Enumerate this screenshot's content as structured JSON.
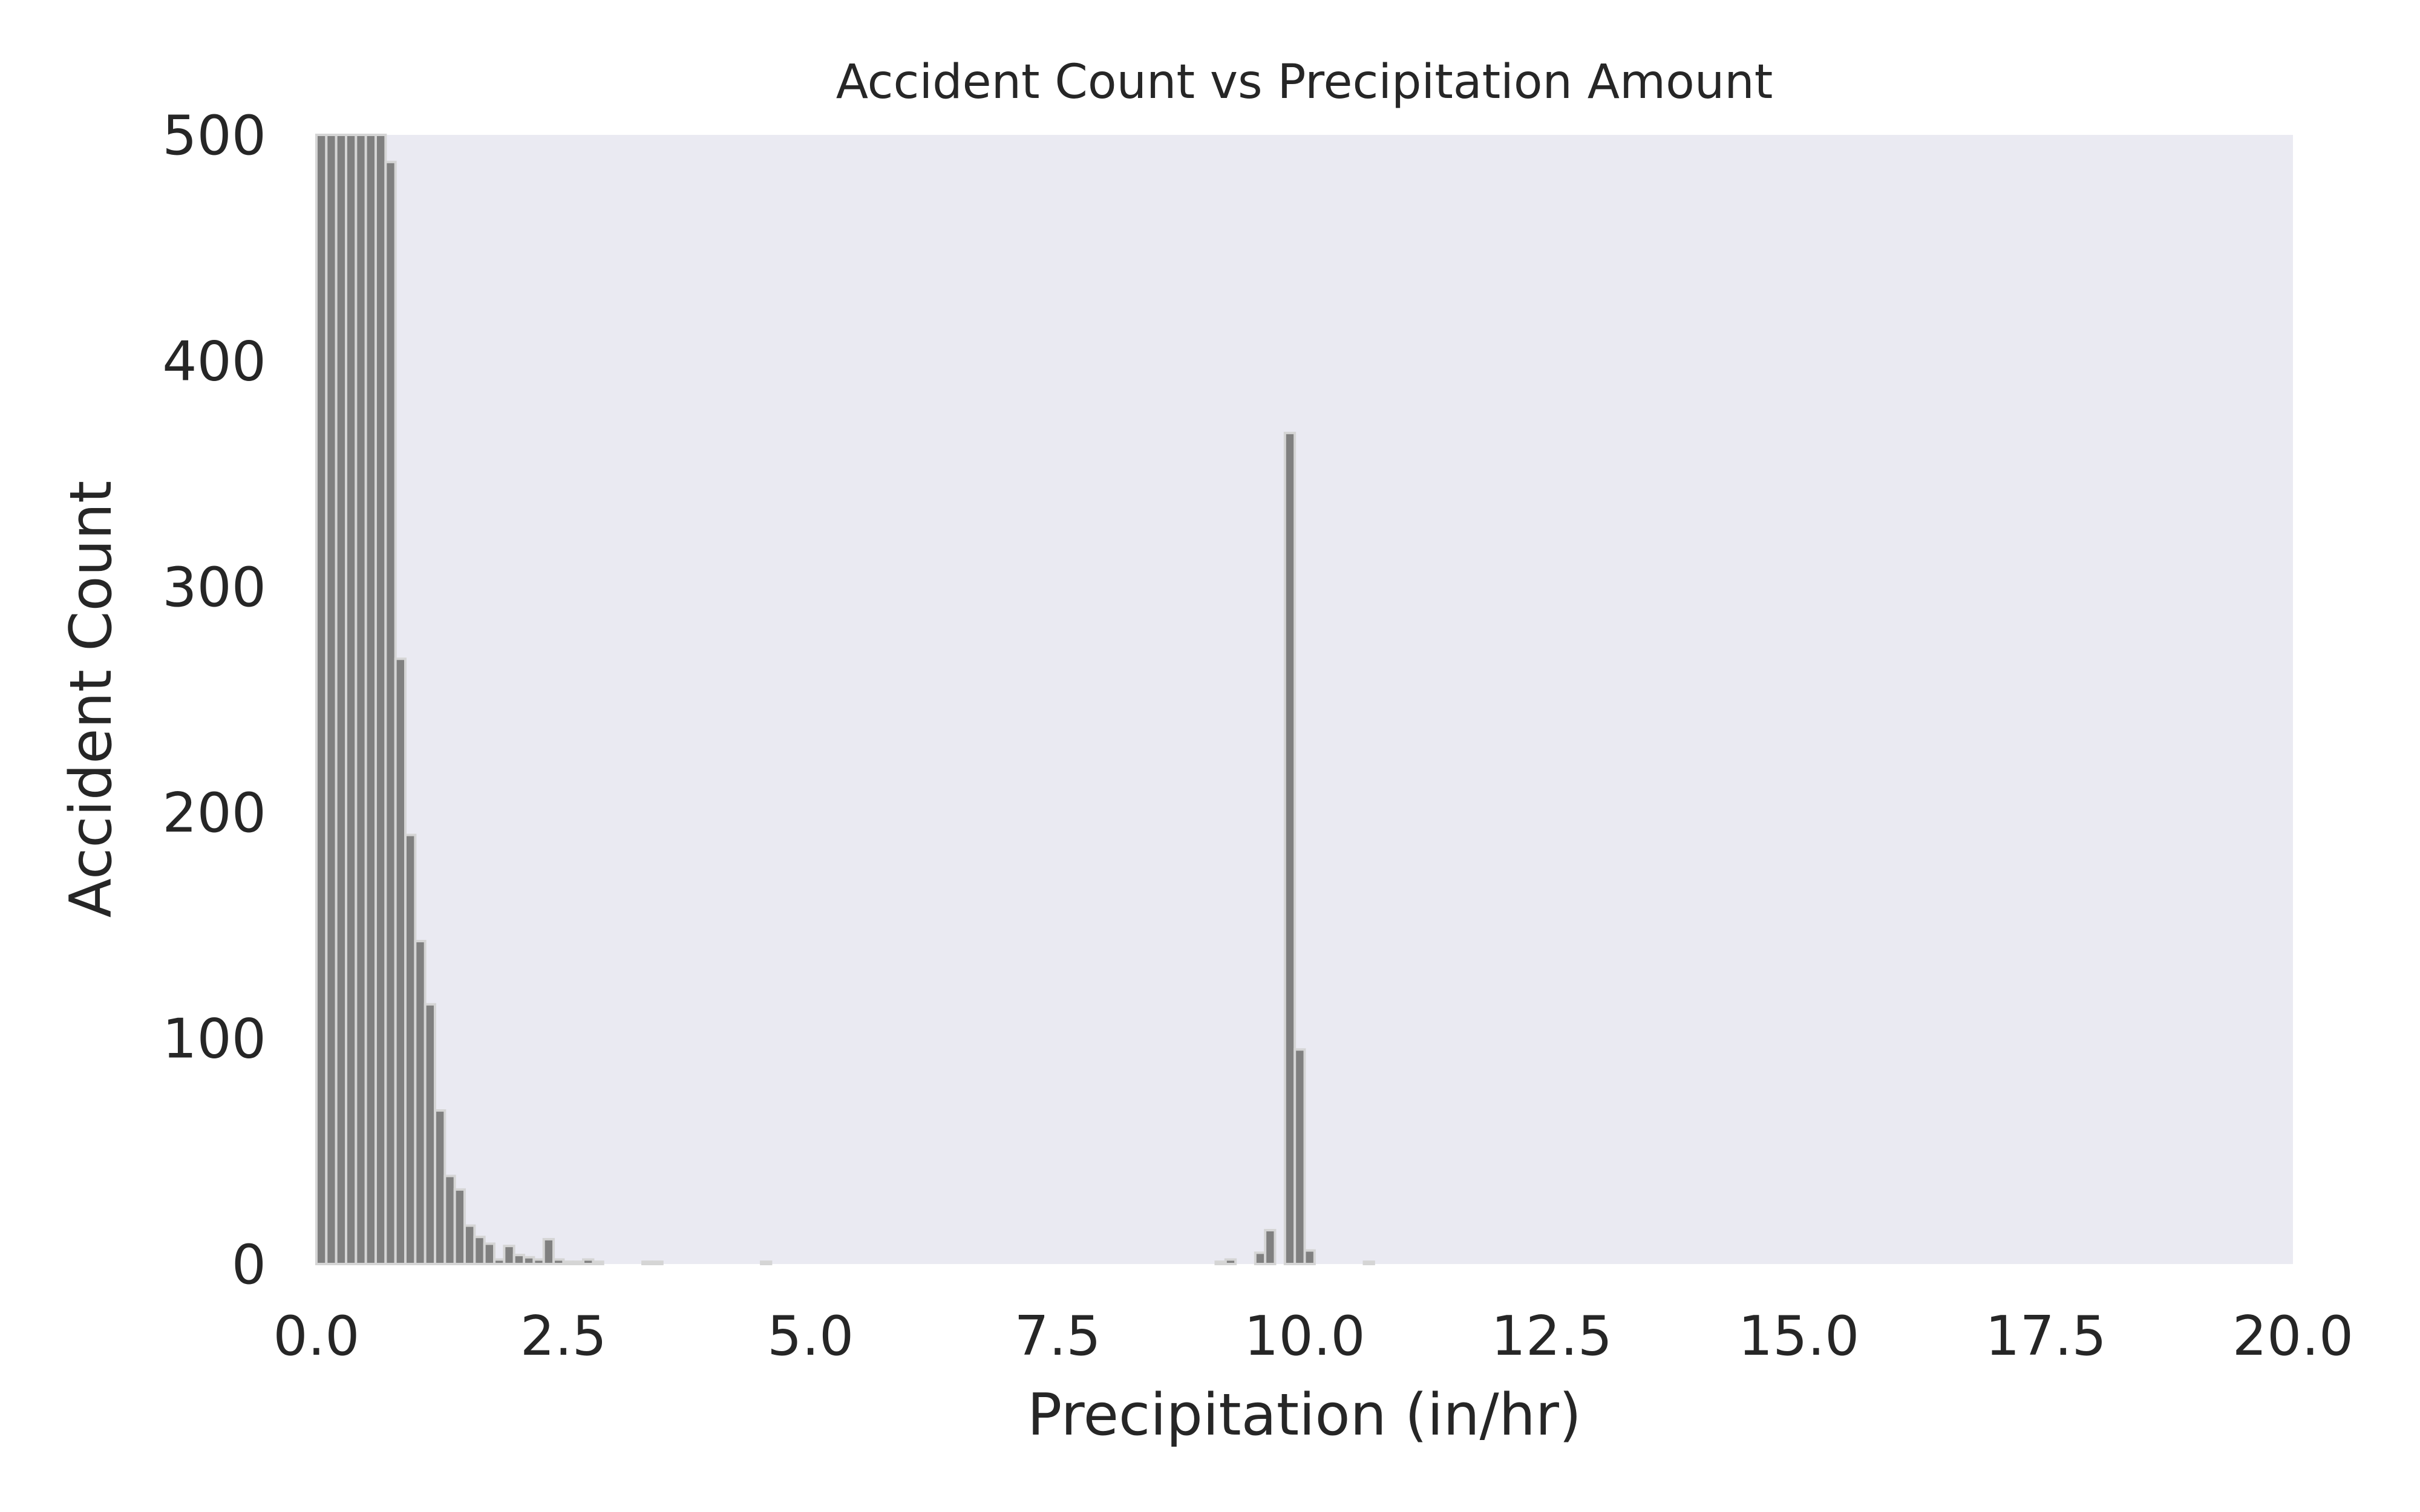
{
  "chart_data": {
    "type": "bar",
    "title": "Accident Count vs Precipitation Amount",
    "xlabel": "Precipitation (in/hr)",
    "ylabel": "Accident Count",
    "xlim": [
      0,
      20
    ],
    "ylim": [
      0,
      500
    ],
    "xticks": [
      "0.0",
      "2.5",
      "5.0",
      "7.5",
      "10.0",
      "12.5",
      "15.0",
      "17.5",
      "20.0"
    ],
    "yticks": [
      "0",
      "100",
      "200",
      "300",
      "400",
      "500"
    ],
    "grid": false,
    "legend": "none",
    "bin_width": 0.1,
    "bars": [
      {
        "x": 0.05,
        "value": 500
      },
      {
        "x": 0.15,
        "value": 500
      },
      {
        "x": 0.25,
        "value": 500
      },
      {
        "x": 0.35,
        "value": 500
      },
      {
        "x": 0.45,
        "value": 500
      },
      {
        "x": 0.55,
        "value": 500
      },
      {
        "x": 0.65,
        "value": 500
      },
      {
        "x": 0.75,
        "value": 488
      },
      {
        "x": 0.85,
        "value": 268
      },
      {
        "x": 0.95,
        "value": 190
      },
      {
        "x": 1.05,
        "value": 143
      },
      {
        "x": 1.15,
        "value": 115
      },
      {
        "x": 1.25,
        "value": 68
      },
      {
        "x": 1.35,
        "value": 39
      },
      {
        "x": 1.45,
        "value": 33
      },
      {
        "x": 1.55,
        "value": 17
      },
      {
        "x": 1.65,
        "value": 12
      },
      {
        "x": 1.75,
        "value": 9
      },
      {
        "x": 1.85,
        "value": 2
      },
      {
        "x": 1.95,
        "value": 8
      },
      {
        "x": 2.05,
        "value": 4
      },
      {
        "x": 2.15,
        "value": 3
      },
      {
        "x": 2.25,
        "value": 2
      },
      {
        "x": 2.35,
        "value": 11
      },
      {
        "x": 2.45,
        "value": 2
      },
      {
        "x": 2.55,
        "value": 1
      },
      {
        "x": 2.65,
        "value": 1
      },
      {
        "x": 2.75,
        "value": 2
      },
      {
        "x": 2.85,
        "value": 1
      },
      {
        "x": 3.35,
        "value": 1
      },
      {
        "x": 3.45,
        "value": 1
      },
      {
        "x": 4.55,
        "value": 1
      },
      {
        "x": 9.15,
        "value": 1
      },
      {
        "x": 9.25,
        "value": 2
      },
      {
        "x": 9.55,
        "value": 5
      },
      {
        "x": 9.65,
        "value": 15
      },
      {
        "x": 9.85,
        "value": 368
      },
      {
        "x": 9.95,
        "value": 95
      },
      {
        "x": 10.05,
        "value": 6
      },
      {
        "x": 10.65,
        "value": 1
      }
    ],
    "colors": {
      "bar_fill": "#808080",
      "bar_edge": "#d5d5d5",
      "plot_background": "#eaeaf2",
      "text": "#262626"
    }
  }
}
